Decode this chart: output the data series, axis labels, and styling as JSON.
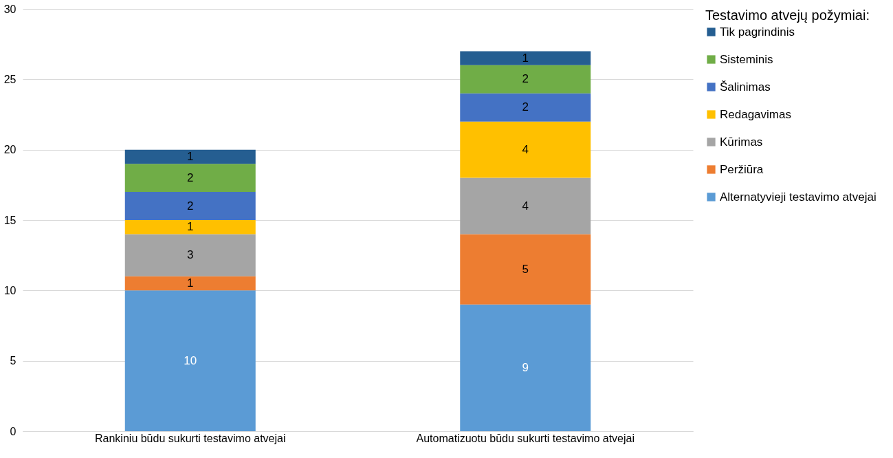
{
  "chart_data": {
    "type": "bar",
    "stacked": true,
    "data_labels": true,
    "grid": "y",
    "legend": "right",
    "legend_title": "Testavimo atvejų požymiai:",
    "categories": [
      "Rankiniu būdu sukurti testavimo atvejai",
      "Automatizuotu būdu sukurti testavimo atvejai"
    ],
    "ylim": [
      0,
      30
    ],
    "yticks": [
      0,
      5,
      10,
      15,
      20,
      25,
      30
    ],
    "series": [
      {
        "name": "Alternatyvieji testavimo atvejai",
        "color": "#5b9bd5",
        "values": [
          10,
          9
        ]
      },
      {
        "name": "Peržiūra",
        "color": "#ed7d31",
        "values": [
          1,
          5
        ]
      },
      {
        "name": "Kūrimas",
        "color": "#a5a5a5",
        "values": [
          3,
          4
        ]
      },
      {
        "name": "Redagavimas",
        "color": "#ffc000",
        "values": [
          1,
          4
        ]
      },
      {
        "name": "Šalinimas",
        "color": "#4472c4",
        "values": [
          2,
          2
        ]
      },
      {
        "name": "Sisteminis",
        "color": "#70ad47",
        "values": [
          2,
          2
        ]
      },
      {
        "name": "Tik pagrindinis",
        "color": "#255e91",
        "values": [
          1,
          1
        ]
      }
    ]
  }
}
